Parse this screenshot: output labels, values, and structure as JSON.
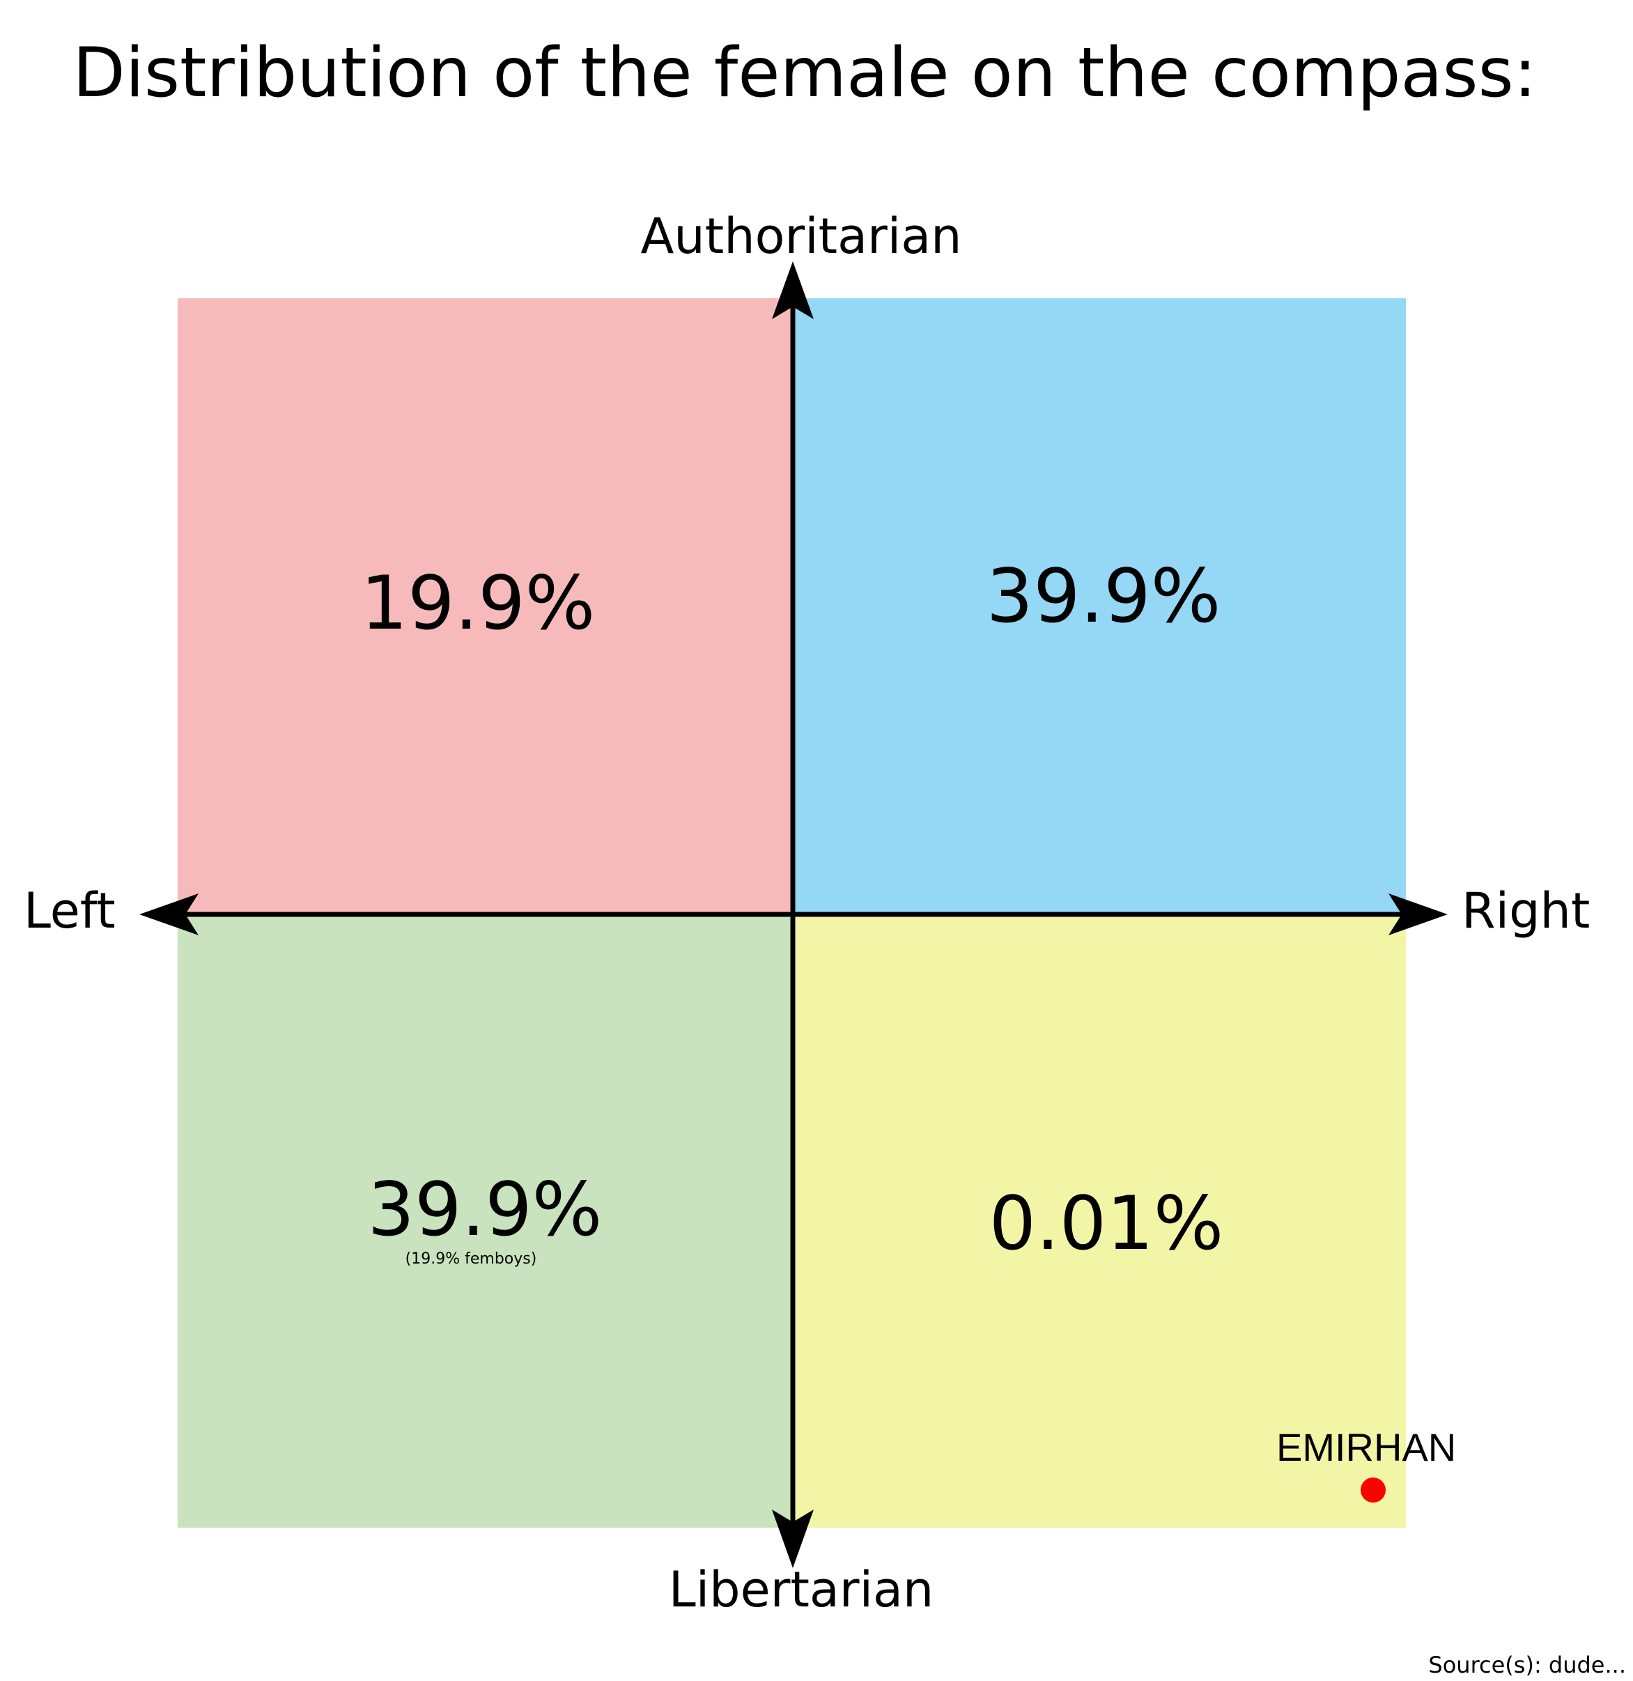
{
  "title": "Distribution of the female on the compass:",
  "axes": {
    "top": "Authoritarian",
    "bottom": "Libertarian",
    "left": "Left",
    "right": "Right"
  },
  "quadrants": {
    "top_left": {
      "value": "19.9%",
      "color": "#f7baba"
    },
    "top_right": {
      "value": "39.9%",
      "color": "#94d8f5"
    },
    "bottom_left": {
      "value": "39.9%",
      "note": "(19.9% femboys)",
      "color": "#c8e3bd"
    },
    "bottom_right": {
      "value": "0.01%",
      "color": "#f3f5a6"
    }
  },
  "marker": {
    "label": "EMIRHAN",
    "color": "#ff0000"
  },
  "source": "Source(s): dude..."
}
